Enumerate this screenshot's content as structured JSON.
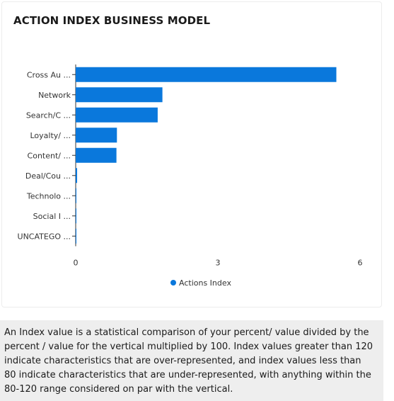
{
  "card": {
    "title": "ACTION INDEX BUSINESS MODEL"
  },
  "chart_data": {
    "type": "bar",
    "orientation": "horizontal",
    "categories": [
      "Cross Au ...",
      "Network",
      "Search/C ...",
      "Loyalty/ ...",
      "Content/ ...",
      "Deal/Cou ...",
      "Technolo ...",
      "Social I ...",
      "UNCATEGO ..."
    ],
    "series": [
      {
        "name": "Actions Index",
        "values": [
          5.5,
          1.83,
          1.73,
          0.87,
          0.86,
          0.03,
          0.01,
          0.01,
          0.01
        ]
      }
    ],
    "xlim": [
      0,
      6
    ],
    "xticks": [
      "0",
      "3",
      "6"
    ],
    "grid": false,
    "legend": "bottom-center",
    "colors": {
      "bar": "#0a78dc",
      "axis": "#333333",
      "text": "#333333"
    }
  },
  "note": {
    "text": "An Index value is a statistical comparison of your percent/ value divided by the percent / value for the vertical multiplied by 100. Index values greater than 120 indicate characteristics that are over-represented, and index values less than 80 indicate characteristics that are under-represented, with anything within the 80-120 range considered on par with the vertical."
  }
}
